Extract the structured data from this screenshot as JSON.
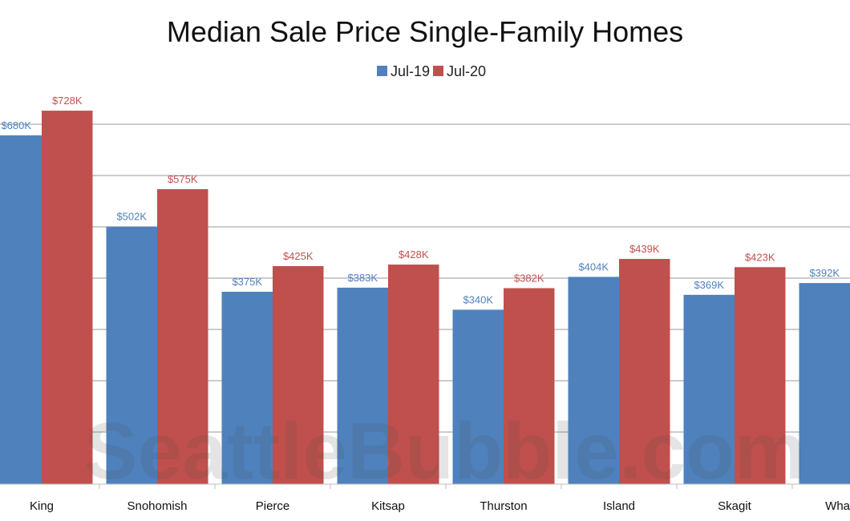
{
  "chart_data": {
    "type": "bar",
    "title": "Median Sale Price Single-Family Homes",
    "xlabel": "",
    "ylabel": "",
    "ylim": [
      0,
      700000
    ],
    "grid": true,
    "legend_position": "top-center",
    "categories": [
      "King",
      "Snohomish",
      "Pierce",
      "Kitsap",
      "Thurston",
      "Island",
      "Skagit",
      "Whatcom"
    ],
    "category_labels": [
      "King",
      "Snohomish",
      "Pierce",
      "Kitsap",
      "Thurston",
      "Island",
      "Skagit",
      "Wha"
    ],
    "series": [
      {
        "name": "Jul-19",
        "color": "#4f81bd",
        "values": [
          680000,
          502000,
          375000,
          383000,
          340000,
          404000,
          369000,
          392000
        ],
        "labels": [
          "$680K",
          "$502K",
          "$375K",
          "$383K",
          "$340K",
          "$404K",
          "$369K",
          "$392K"
        ]
      },
      {
        "name": "Jul-20",
        "color": "#c0504d",
        "values": [
          728000,
          575000,
          425000,
          428000,
          382000,
          439000,
          423000,
          null
        ],
        "labels": [
          "$728K",
          "$575K",
          "$425K",
          "$428K",
          "$382K",
          "$439K",
          "$423K",
          ""
        ]
      }
    ],
    "watermark": "SeattleBubble.com"
  }
}
